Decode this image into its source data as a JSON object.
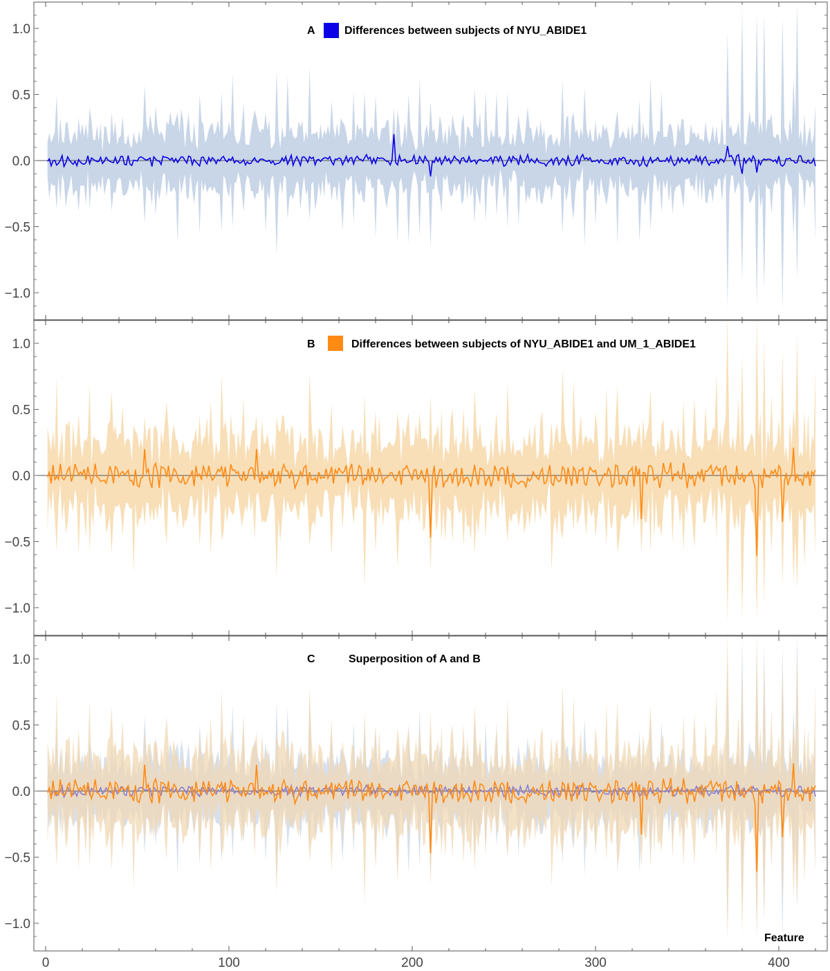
{
  "chart_data": [
    {
      "type": "line",
      "panel_letter": "A",
      "title": "Differences between subjects of NYU_ABIDE1",
      "legend": [
        {
          "name": "Differences between subjects of NYU_ABIDE1",
          "color": "#0b00e6"
        }
      ],
      "ylim": [
        -1.2,
        1.2
      ],
      "xlim": [
        -1,
        422
      ],
      "yticks": [
        1.0,
        0.5,
        0.0,
        -0.5,
        -1.0
      ],
      "ytick_labels": [
        "1.0",
        "0.5",
        "0.0",
        "−0.5",
        "−1.0"
      ],
      "series": [
        {
          "name": "NYU_ABIDE1",
          "color": "#0b00e6",
          "band_color": "#c9d6e8",
          "seed": 11,
          "amp": 0.035,
          "band": 0.2,
          "offset": 0.0
        }
      ],
      "extremes": [
        {
          "x": 190,
          "y": 0.2
        },
        {
          "x": 210,
          "y": -0.12
        },
        {
          "x": 372,
          "y": 0.11
        },
        {
          "x": 380,
          "y": -0.1
        },
        {
          "x": 388,
          "y": -0.09
        }
      ]
    },
    {
      "type": "line",
      "panel_letter": "B",
      "title": "Differences between subjects of NYU_ABIDE1 and UM_1_ABIDE1",
      "legend": [
        {
          "name": "Differences between subjects of NYU_ABIDE1 and UM_1_ABIDE1",
          "color": "#ff8a14"
        }
      ],
      "ylim": [
        -1.2,
        1.2
      ],
      "xlim": [
        -1,
        422
      ],
      "yticks": [
        1.0,
        0.5,
        0.0,
        -0.5,
        -1.0
      ],
      "ytick_labels": [
        "1.0",
        "0.5",
        "0.0",
        "−0.5",
        "−1.0"
      ],
      "series": [
        {
          "name": "NYU_ABIDE1 vs UM_1_ABIDE1",
          "color": "#ff8a14",
          "band_color": "#f8dfb8",
          "seed": 29,
          "amp": 0.075,
          "band": 0.25,
          "offset": 0.0
        }
      ],
      "extremes": [
        {
          "x": 54,
          "y": 0.2
        },
        {
          "x": 115,
          "y": 0.2
        },
        {
          "x": 210,
          "y": -0.47
        },
        {
          "x": 325,
          "y": -0.33
        },
        {
          "x": 388,
          "y": -0.61
        },
        {
          "x": 402,
          "y": -0.35
        },
        {
          "x": 408,
          "y": 0.21
        }
      ]
    },
    {
      "type": "line",
      "panel_letter": "",
      "title": "Superposition of A and B",
      "title_letter": "C",
      "xlabel": "Feature",
      "ylim": [
        -1.2,
        1.2
      ],
      "xlim": [
        -1,
        422
      ],
      "yticks": [
        1.0,
        0.5,
        0.0,
        -0.5,
        -1.0
      ],
      "ytick_labels": [
        "1.0",
        "0.5",
        "0.0",
        "−0.5",
        "−1.0"
      ],
      "xticks": [
        0,
        100,
        200,
        300,
        400
      ],
      "xtick_labels": [
        "0",
        "100",
        "200",
        "300",
        "400"
      ],
      "series": [
        {
          "name": "NYU_ABIDE1",
          "color": "#8a7fd0",
          "band_color": "#c9d6e8",
          "seed": 11,
          "amp": 0.035,
          "band": 0.2,
          "offset": 0.0
        },
        {
          "name": "NYU_ABIDE1 vs UM_1_ABIDE1",
          "color": "#ff8a14",
          "band_color": "#f0d8b4",
          "seed": 29,
          "amp": 0.075,
          "band": 0.25,
          "offset": 0.0
        }
      ],
      "extremes": []
    }
  ]
}
